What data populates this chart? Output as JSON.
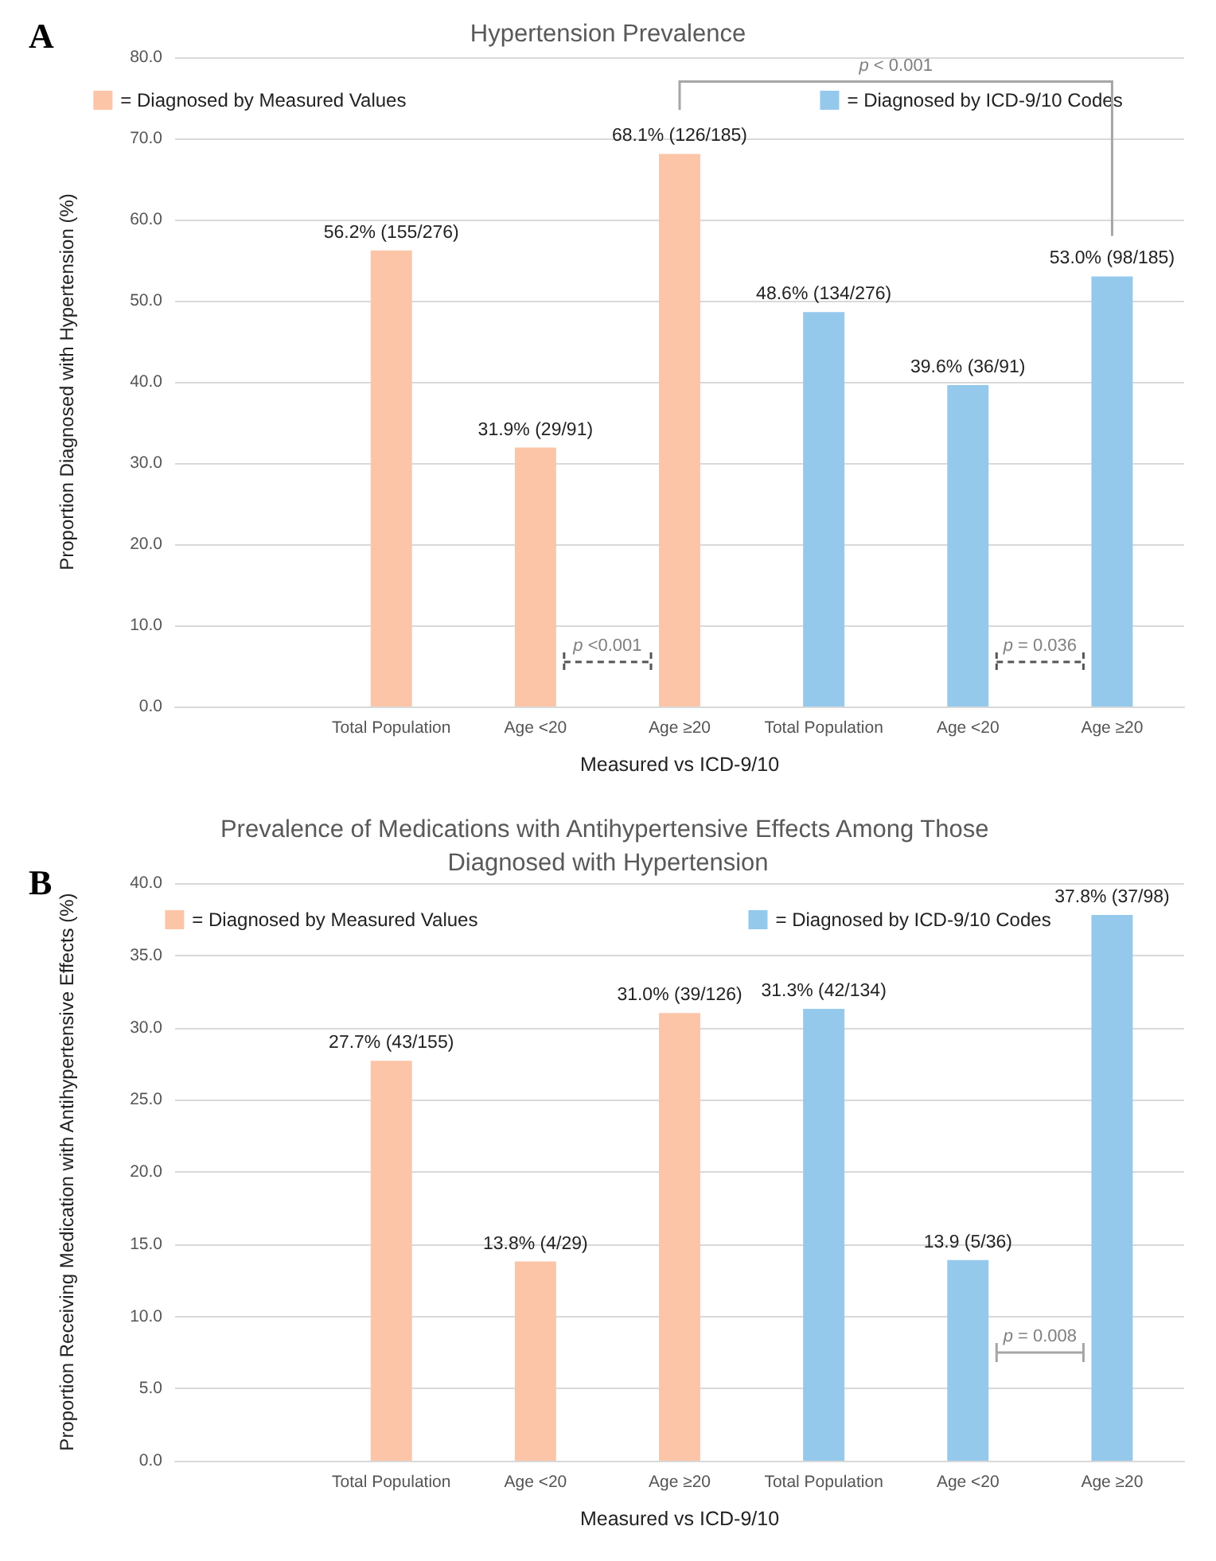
{
  "chart_data": [
    {
      "type": "bar",
      "title": "Hypertension Prevalence",
      "xlabel": "Measured vs ICD-9/10",
      "ylabel": "Proportion Diagnosed with Hypertension (%)",
      "categories": [
        null,
        "Total Population",
        "Age <20",
        "Age ≥20",
        "Total Population",
        "Age <20",
        "Age ≥20"
      ],
      "series": [
        {
          "name": "= Diagnosed by Measured Values",
          "color": "#fcc5a8",
          "values": [
            null,
            56.2,
            31.9,
            68.1,
            null,
            null,
            null
          ],
          "value_labels": [
            null,
            "56.2% (155/276)",
            "31.9% (29/91)",
            "68.1% (126/185)",
            null,
            null,
            null
          ]
        },
        {
          "name": "= Diagnosed by ICD-9/10 Codes",
          "color": "#95c9ec",
          "values": [
            null,
            null,
            null,
            null,
            48.6,
            39.6,
            53.0
          ],
          "value_labels": [
            null,
            null,
            null,
            null,
            "48.6% (134/276)",
            "39.6% (36/91)",
            "53.0% (98/185)"
          ]
        }
      ],
      "ylim": [
        0,
        80
      ],
      "yticks": [
        {
          "value": 0,
          "label": "0.0"
        },
        {
          "value": 10,
          "label": "10.0"
        },
        {
          "value": 20,
          "label": "20.0"
        },
        {
          "value": 30,
          "label": "30.0"
        },
        {
          "value": 40,
          "label": "40.0"
        },
        {
          "value": 50,
          "label": "50.0"
        },
        {
          "value": 60,
          "label": "60.0"
        },
        {
          "value": 70,
          "label": "70.0"
        },
        {
          "value": 80,
          "label": "80.0"
        }
      ],
      "grid": "y",
      "legend": "top",
      "annotations": [
        "A",
        "p < 0.001",
        "p <0.001",
        "p = 0.036"
      ]
    },
    {
      "type": "bar",
      "title": "Prevalence of Medications with Antihypertensive Effects Among Those Diagnosed with Hypertension",
      "xlabel": "Measured vs ICD-9/10",
      "ylabel": "Proportion Receiving Medication with Antihypertensive Effects (%)",
      "categories": [
        null,
        "Total Population",
        "Age <20",
        "Age ≥20",
        "Total Population",
        "Age <20",
        "Age ≥20"
      ],
      "series": [
        {
          "name": "= Diagnosed by Measured Values",
          "color": "#fcc5a8",
          "values": [
            null,
            27.7,
            13.8,
            31.0,
            null,
            null,
            null
          ],
          "value_labels": [
            null,
            "27.7% (43/155)",
            "13.8% (4/29)",
            "31.0% (39/126)",
            null,
            null,
            null
          ]
        },
        {
          "name": "= Diagnosed by ICD-9/10 Codes",
          "color": "#95c9ec",
          "values": [
            null,
            null,
            null,
            null,
            31.3,
            13.9,
            37.8
          ],
          "value_labels": [
            null,
            null,
            null,
            null,
            "31.3% (42/134)",
            "13.9 (5/36)",
            "37.8% (37/98)"
          ]
        }
      ],
      "ylim": [
        0,
        40
      ],
      "yticks": [
        {
          "value": 0,
          "label": "0.0"
        },
        {
          "value": 5,
          "label": "5.0"
        },
        {
          "value": 10,
          "label": "10.0"
        },
        {
          "value": 15,
          "label": "15.0"
        },
        {
          "value": 20,
          "label": "20.0"
        },
        {
          "value": 25,
          "label": "25.0"
        },
        {
          "value": 30,
          "label": "30.0"
        },
        {
          "value": 35,
          "label": "35.0"
        },
        {
          "value": 40,
          "label": "40.0"
        }
      ],
      "grid": "y",
      "legend": "top",
      "annotations": [
        "B",
        "p = 0.008"
      ]
    }
  ]
}
